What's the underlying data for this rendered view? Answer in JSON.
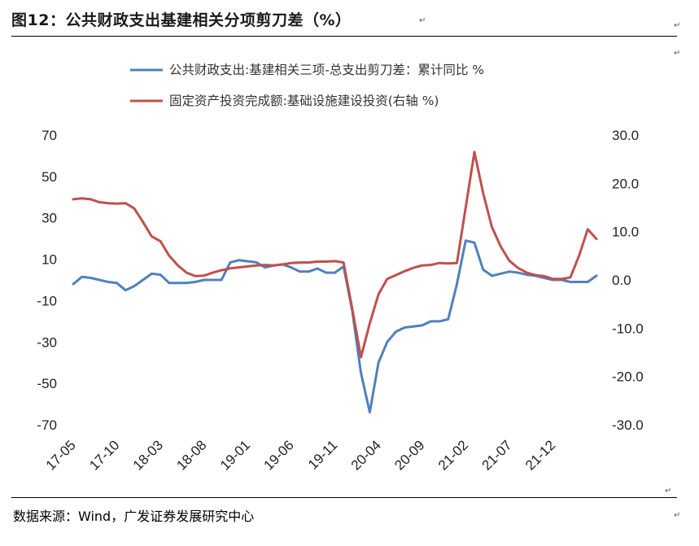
{
  "header": {
    "title": "图12：公共财政支出基建相关分项剪刀差（%）",
    "return_mark": "↵"
  },
  "footer": {
    "source": "数据来源：Wind，广发证券发展研究中心"
  },
  "colors": {
    "series1": "#4f81bd",
    "series2": "#c0504d"
  },
  "chart_data": {
    "type": "line",
    "legend_position": "top",
    "grid": false,
    "x_ticks": [
      "17-05",
      "17-10",
      "18-03",
      "18-08",
      "19-01",
      "19-06",
      "19-11",
      "20-04",
      "20-09",
      "21-02",
      "21-07",
      "21-12"
    ],
    "x": [
      "17-05",
      "17-06",
      "17-07",
      "17-08",
      "17-09",
      "17-10",
      "17-11",
      "17-12",
      "18-01",
      "18-02",
      "18-03",
      "18-04",
      "18-05",
      "18-06",
      "18-07",
      "18-08",
      "18-09",
      "18-10",
      "18-11",
      "18-12",
      "19-01",
      "19-02",
      "19-03",
      "19-04",
      "19-05",
      "19-06",
      "19-07",
      "19-08",
      "19-09",
      "19-10",
      "19-11",
      "19-12",
      "20-01",
      "20-02",
      "20-03",
      "20-04",
      "20-05",
      "20-06",
      "20-07",
      "20-08",
      "20-09",
      "20-10",
      "20-11",
      "20-12",
      "21-01",
      "21-02",
      "21-03",
      "21-04",
      "21-05",
      "21-06",
      "21-07",
      "21-08",
      "21-09",
      "21-10",
      "21-11",
      "21-12",
      "22-01",
      "22-02",
      "22-03",
      "22-04",
      "22-05"
    ],
    "y_left": {
      "ticks": [
        "70",
        "50",
        "30",
        "10",
        "-10",
        "-30",
        "-50",
        "-70"
      ],
      "ylim": [
        -70,
        70
      ]
    },
    "y_right": {
      "ticks": [
        "30.0",
        "20.0",
        "10.0",
        "0.0",
        "-10.0",
        "-20.0",
        "-30.0"
      ],
      "ylim": [
        -30,
        30
      ]
    },
    "series": [
      {
        "name": "公共财政支出:基建相关三项-总支出剪刀差：累计同比 %",
        "axis": "left",
        "values": [
          -2,
          1.5,
          1,
          0,
          -1,
          -1.5,
          -5,
          -3,
          0,
          3,
          2.5,
          -1.5,
          -1.5,
          -1.5,
          -1,
          0,
          0,
          0,
          8.5,
          9.5,
          9,
          8.5,
          6,
          7,
          7.5,
          6,
          4,
          4,
          5.5,
          3.5,
          3.5,
          6.5,
          -15,
          -45,
          -64,
          -40,
          -30,
          -25,
          -23,
          -22.5,
          -22,
          -20,
          -20,
          -19,
          -2,
          19,
          18,
          5,
          2,
          3,
          4,
          3.5,
          2.5,
          2,
          1,
          0,
          0,
          -1,
          -1,
          -1,
          2
        ]
      },
      {
        "name": "固定资产投资完成额:基础设施建设投资(右轴 %)",
        "axis": "right",
        "values": [
          16.7,
          16.9,
          16.7,
          16.1,
          15.9,
          15.8,
          15.9,
          14.8,
          12.0,
          9.0,
          8.0,
          5.0,
          3.0,
          1.5,
          0.8,
          0.9,
          1.5,
          2.0,
          2.4,
          2.6,
          2.8,
          3.0,
          3.1,
          3.0,
          3.2,
          3.5,
          3.6,
          3.6,
          3.8,
          3.8,
          3.9,
          3.6,
          -6.0,
          -16.0,
          -9.0,
          -3.0,
          0.2,
          1.0,
          1.8,
          2.5,
          3.0,
          3.1,
          3.5,
          3.4,
          3.5,
          15.0,
          26.5,
          18.0,
          11.0,
          7.0,
          4.0,
          2.5,
          1.5,
          1.0,
          0.8,
          0.2,
          0.2,
          0.5,
          5.0,
          10.5,
          8.5
        ]
      }
    ]
  }
}
